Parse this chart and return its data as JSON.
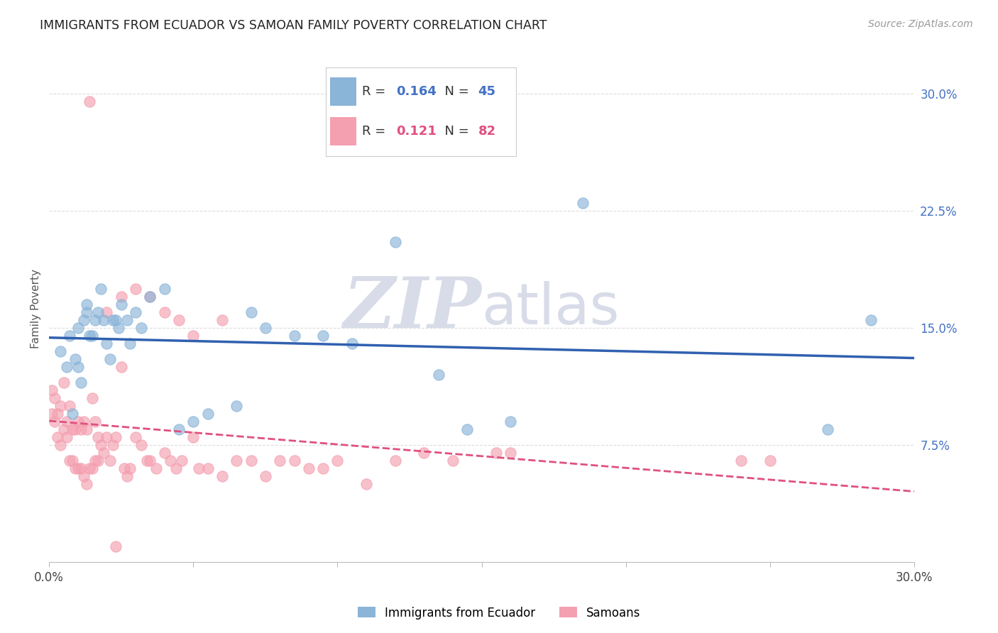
{
  "title": "IMMIGRANTS FROM ECUADOR VS SAMOAN FAMILY POVERTY CORRELATION CHART",
  "source": "Source: ZipAtlas.com",
  "ylabel": "Family Poverty",
  "yticks": [
    "7.5%",
    "15.0%",
    "22.5%",
    "30.0%"
  ],
  "ytick_vals": [
    0.075,
    0.15,
    0.225,
    0.3
  ],
  "xlim": [
    0.0,
    0.3
  ],
  "ylim": [
    0.0,
    0.325
  ],
  "R_ecuador": 0.164,
  "N_ecuador": 45,
  "R_samoans": 0.121,
  "N_samoans": 82,
  "color_ecuador": "#8ab4d8",
  "color_samoans": "#f4a0b0",
  "line_color_ecuador": "#3060b0",
  "line_color_samoans": "#e05080",
  "watermark_zip": "ZIP",
  "watermark_atlas": "atlas",
  "watermark_color": "#d8dce8",
  "ecuador_x": [
    0.004,
    0.006,
    0.007,
    0.008,
    0.009,
    0.01,
    0.01,
    0.011,
    0.012,
    0.013,
    0.013,
    0.014,
    0.015,
    0.016,
    0.017,
    0.018,
    0.019,
    0.02,
    0.021,
    0.022,
    0.023,
    0.024,
    0.025,
    0.027,
    0.028,
    0.03,
    0.032,
    0.035,
    0.04,
    0.045,
    0.05,
    0.055,
    0.065,
    0.07,
    0.075,
    0.085,
    0.095,
    0.105,
    0.12,
    0.135,
    0.145,
    0.16,
    0.185,
    0.27,
    0.285
  ],
  "ecuador_y": [
    0.135,
    0.125,
    0.145,
    0.095,
    0.13,
    0.125,
    0.15,
    0.115,
    0.155,
    0.165,
    0.16,
    0.145,
    0.145,
    0.155,
    0.16,
    0.175,
    0.155,
    0.14,
    0.13,
    0.155,
    0.155,
    0.15,
    0.165,
    0.155,
    0.14,
    0.16,
    0.15,
    0.17,
    0.175,
    0.085,
    0.09,
    0.095,
    0.1,
    0.16,
    0.15,
    0.145,
    0.145,
    0.14,
    0.205,
    0.12,
    0.085,
    0.09,
    0.23,
    0.085,
    0.155
  ],
  "samoans_x": [
    0.001,
    0.001,
    0.002,
    0.002,
    0.003,
    0.003,
    0.004,
    0.004,
    0.005,
    0.005,
    0.006,
    0.006,
    0.007,
    0.007,
    0.008,
    0.008,
    0.009,
    0.009,
    0.01,
    0.01,
    0.011,
    0.011,
    0.012,
    0.012,
    0.013,
    0.013,
    0.014,
    0.015,
    0.015,
    0.016,
    0.016,
    0.017,
    0.017,
    0.018,
    0.019,
    0.02,
    0.021,
    0.022,
    0.023,
    0.025,
    0.026,
    0.027,
    0.028,
    0.03,
    0.032,
    0.034,
    0.035,
    0.037,
    0.04,
    0.042,
    0.044,
    0.046,
    0.05,
    0.052,
    0.055,
    0.06,
    0.065,
    0.07,
    0.075,
    0.08,
    0.085,
    0.09,
    0.095,
    0.1,
    0.11,
    0.12,
    0.13,
    0.14,
    0.155,
    0.16,
    0.02,
    0.025,
    0.03,
    0.035,
    0.04,
    0.045,
    0.05,
    0.06,
    0.24,
    0.25,
    0.014,
    0.023
  ],
  "samoans_y": [
    0.11,
    0.095,
    0.105,
    0.09,
    0.095,
    0.08,
    0.1,
    0.075,
    0.115,
    0.085,
    0.09,
    0.08,
    0.1,
    0.065,
    0.085,
    0.065,
    0.085,
    0.06,
    0.09,
    0.06,
    0.085,
    0.06,
    0.09,
    0.055,
    0.085,
    0.05,
    0.06,
    0.105,
    0.06,
    0.09,
    0.065,
    0.08,
    0.065,
    0.075,
    0.07,
    0.08,
    0.065,
    0.075,
    0.08,
    0.125,
    0.06,
    0.055,
    0.06,
    0.08,
    0.075,
    0.065,
    0.065,
    0.06,
    0.07,
    0.065,
    0.06,
    0.065,
    0.08,
    0.06,
    0.06,
    0.055,
    0.065,
    0.065,
    0.055,
    0.065,
    0.065,
    0.06,
    0.06,
    0.065,
    0.05,
    0.065,
    0.07,
    0.065,
    0.07,
    0.07,
    0.16,
    0.17,
    0.175,
    0.17,
    0.16,
    0.155,
    0.145,
    0.155,
    0.065,
    0.065,
    0.295,
    0.01
  ]
}
